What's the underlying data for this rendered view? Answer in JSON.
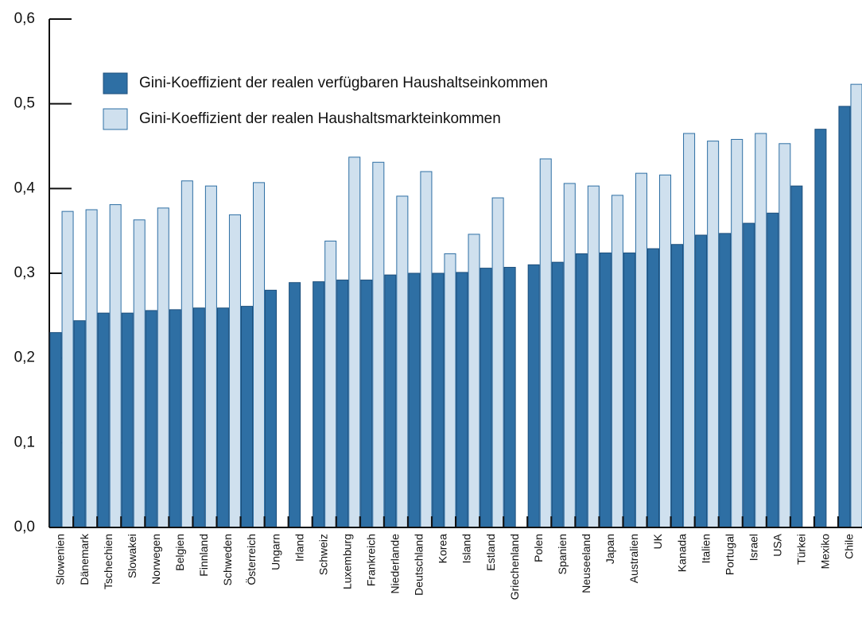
{
  "chart_data": {
    "type": "bar",
    "categories": [
      "Slowenien",
      "Dänemark",
      "Tschechien",
      "Slowakei",
      "Norwegen",
      "Belgien",
      "Finnland",
      "Schweden",
      "Österreich",
      "Ungarn",
      "Irland",
      "Schweiz",
      "Luxemburg",
      "Frankreich",
      "Niederlande",
      "Deutschland",
      "Korea",
      "Island",
      "Estland",
      "Griechenland",
      "Polen",
      "Spanien",
      "Neuseeland",
      "Japan",
      "Australien",
      "UK",
      "Kanada",
      "Italien",
      "Portugal",
      "Israel",
      "USA",
      "Türkei",
      "Mexiko",
      "Chile"
    ],
    "series": [
      {
        "name": "Gini-Koeffizient der realen verfügbaren Haushaltseinkommen",
        "color": "#2e6fa4",
        "values": [
          0.23,
          0.244,
          0.253,
          0.253,
          0.256,
          0.257,
          0.259,
          0.259,
          0.261,
          0.28,
          0.289,
          0.29,
          0.292,
          0.292,
          0.298,
          0.3,
          0.3,
          0.301,
          0.306,
          0.307,
          0.31,
          0.313,
          0.323,
          0.324,
          0.324,
          0.329,
          0.334,
          0.345,
          0.347,
          0.359,
          0.371,
          0.403,
          0.47,
          0.497
        ]
      },
      {
        "name": "Gini-Koeffizient der realen Haushaltsmarkteinkommen",
        "color": "#cfe0ee",
        "values": [
          0.373,
          0.375,
          0.381,
          0.363,
          0.377,
          0.409,
          0.403,
          0.369,
          0.407,
          null,
          null,
          0.338,
          0.437,
          0.431,
          0.391,
          0.42,
          0.323,
          0.346,
          0.389,
          null,
          0.435,
          0.406,
          0.403,
          0.392,
          0.418,
          0.416,
          0.465,
          0.456,
          0.458,
          0.465,
          0.453,
          null,
          null,
          0.523
        ]
      }
    ],
    "ylim": [
      0,
      0.6
    ],
    "yticks": [
      {
        "value": 0,
        "label": "0,0"
      },
      {
        "value": 0.1,
        "label": "0,1"
      },
      {
        "value": 0.2,
        "label": "0,2"
      },
      {
        "value": 0.3,
        "label": "0,3"
      },
      {
        "value": 0.4,
        "label": "0,4"
      },
      {
        "value": 0.5,
        "label": "0,5"
      },
      {
        "value": 0.6,
        "label": "0,6"
      }
    ]
  }
}
